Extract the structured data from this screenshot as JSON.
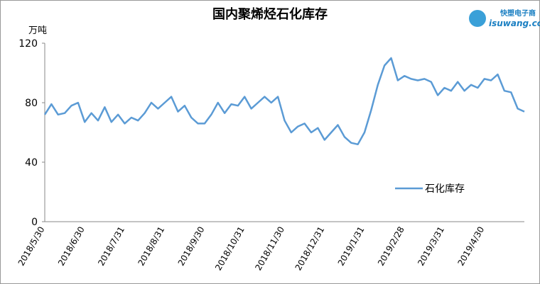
{
  "chart_data": {
    "type": "line",
    "title": "国内聚烯烃石化库存",
    "y_label": "万吨",
    "categories": [
      "2018/5/30",
      null,
      null,
      null,
      null,
      null,
      "2018/6/30",
      null,
      null,
      null,
      null,
      null,
      "2018/7/31",
      null,
      null,
      null,
      null,
      null,
      "2018/8/31",
      null,
      null,
      null,
      null,
      null,
      "2018/9/30",
      null,
      null,
      null,
      null,
      null,
      "2018/10/31",
      null,
      null,
      null,
      null,
      null,
      "2018/11/30",
      null,
      null,
      null,
      null,
      null,
      "2018/12/31",
      null,
      null,
      null,
      null,
      null,
      "2019/1/31",
      null,
      null,
      null,
      null,
      null,
      "2019/2/28",
      null,
      null,
      null,
      null,
      null,
      "2019/3/31",
      null,
      null,
      null,
      null,
      null,
      "2019/4/30",
      null,
      null,
      null,
      null,
      null,
      null
    ],
    "series": [
      {
        "name": "石化库存",
        "color": "#5b9bd5",
        "values": [
          72,
          79,
          72,
          73,
          78,
          80,
          67,
          73,
          68,
          77,
          67,
          72,
          66,
          70,
          68,
          73,
          80,
          76,
          80,
          84,
          74,
          78,
          70,
          66,
          66,
          72,
          80,
          73,
          79,
          78,
          84,
          76,
          80,
          84,
          80,
          84,
          68,
          60,
          64,
          66,
          60,
          63,
          55,
          60,
          65,
          57,
          53,
          52,
          60,
          75,
          92,
          105,
          110,
          95,
          98,
          96,
          95,
          96,
          94,
          85,
          90,
          88,
          94,
          88,
          92,
          90,
          96,
          95,
          99,
          88,
          87,
          76,
          74
        ]
      }
    ],
    "ylim": [
      0,
      120
    ],
    "yticks": [
      0,
      40,
      80,
      120
    ],
    "grid": false,
    "legend": "lower-right"
  },
  "watermark": {
    "brand": "快塑电子商",
    "site": "isuwang.co"
  }
}
